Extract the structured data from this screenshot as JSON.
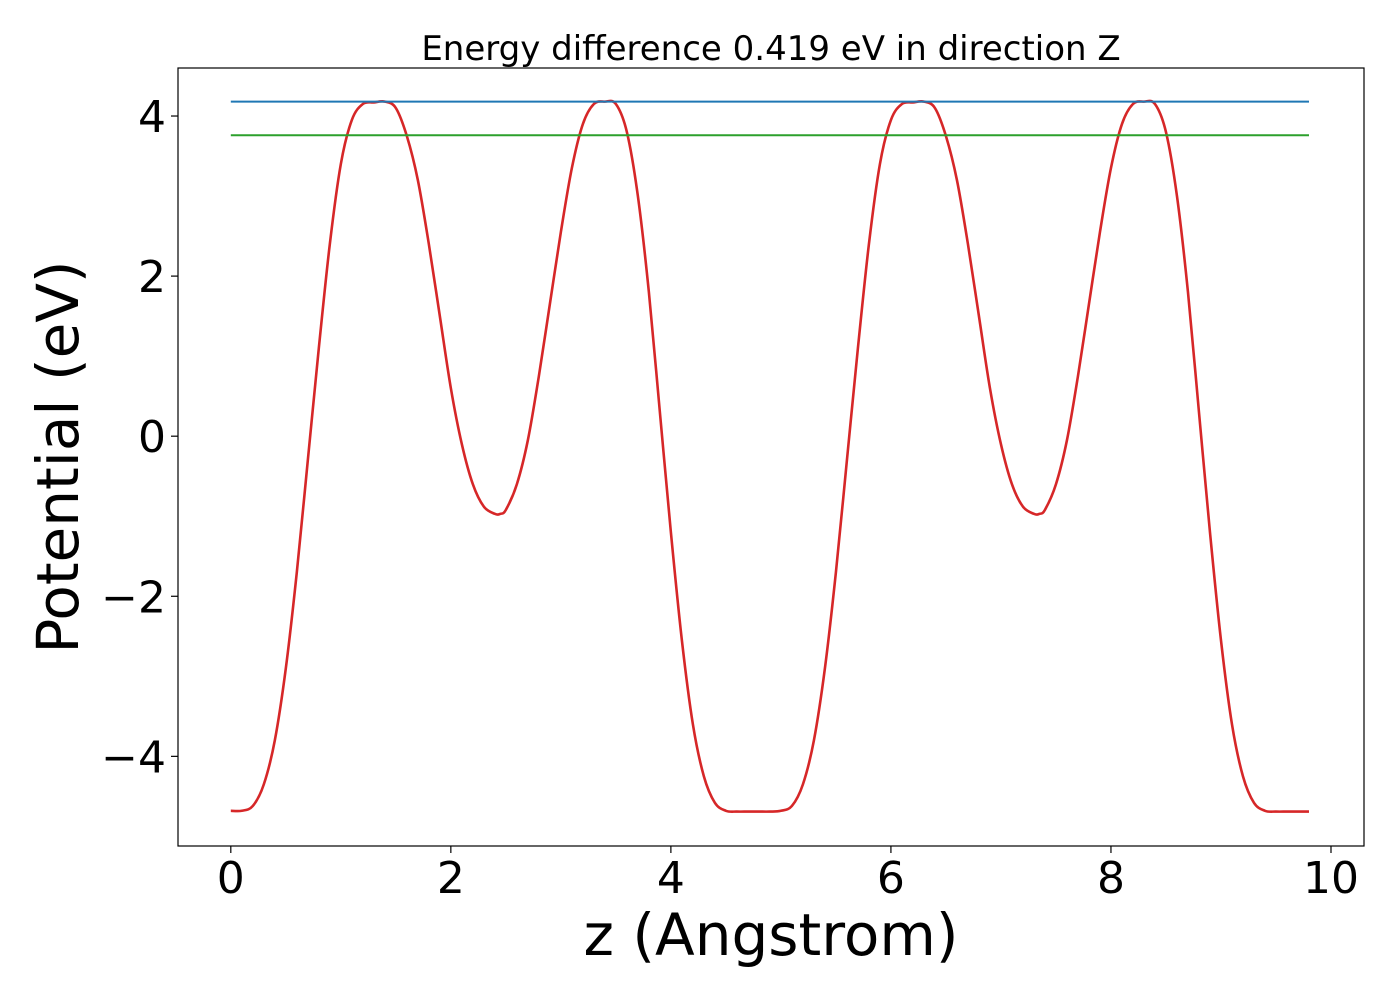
{
  "chart_data": {
    "type": "line",
    "title": "Energy difference 0.419 eV in direction Z",
    "xlabel": "z (Angstrom)",
    "ylabel": "Potential (eV)",
    "xlim": [
      -0.48,
      10.3
    ],
    "ylim": [
      -5.12,
      4.6
    ],
    "xticks": [
      0,
      2,
      4,
      6,
      8,
      10
    ],
    "xtick_labels": [
      "0",
      "2",
      "4",
      "6",
      "8",
      "10"
    ],
    "yticks": [
      -4,
      -2,
      0,
      2,
      4
    ],
    "ytick_labels": [
      "−4",
      "−2",
      "0",
      "2",
      "4"
    ],
    "grid": false,
    "series": [
      {
        "color": "#d62728",
        "kind": "curve",
        "x": [
          0.0,
          0.1,
          0.2,
          0.3,
          0.4,
          0.5,
          0.6,
          0.7,
          0.8,
          0.9,
          1.0,
          1.1,
          1.2,
          1.3,
          1.4,
          1.5,
          1.6,
          1.7,
          1.8,
          1.9,
          2.0,
          2.1,
          2.2,
          2.3,
          2.4,
          2.45,
          2.5,
          2.6,
          2.7,
          2.8,
          2.9,
          3.0,
          3.1,
          3.2,
          3.3,
          3.4,
          3.5,
          3.6,
          3.7,
          3.8,
          3.9,
          4.0,
          4.1,
          4.2,
          4.3,
          4.4,
          4.5,
          4.6,
          4.7,
          4.8,
          4.9,
          5.0,
          5.1,
          5.2,
          5.3,
          5.4,
          5.5,
          5.6,
          5.7,
          5.8,
          5.9,
          6.0,
          6.1,
          6.2,
          6.3,
          6.4,
          6.5,
          6.6,
          6.7,
          6.8,
          6.9,
          7.0,
          7.1,
          7.2,
          7.3,
          7.35,
          7.4,
          7.5,
          7.6,
          7.7,
          7.8,
          7.9,
          8.0,
          8.1,
          8.2,
          8.3,
          8.4,
          8.5,
          8.6,
          8.7,
          8.8,
          8.9,
          9.0,
          9.1,
          9.2,
          9.3,
          9.4,
          9.5,
          9.6,
          9.7,
          9.8
        ],
        "y": [
          -4.68,
          -4.68,
          -4.62,
          -4.35,
          -3.8,
          -2.9,
          -1.7,
          -0.3,
          1.1,
          2.4,
          3.4,
          3.95,
          4.15,
          4.17,
          4.18,
          4.1,
          3.75,
          3.2,
          2.4,
          1.5,
          0.6,
          -0.1,
          -0.6,
          -0.88,
          -0.97,
          -0.97,
          -0.92,
          -0.6,
          -0.05,
          0.75,
          1.65,
          2.55,
          3.35,
          3.9,
          4.15,
          4.18,
          4.15,
          3.8,
          3.0,
          1.8,
          0.3,
          -1.2,
          -2.55,
          -3.6,
          -4.25,
          -4.58,
          -4.68,
          -4.69,
          -4.69,
          -4.69,
          -4.69,
          -4.68,
          -4.62,
          -4.35,
          -3.8,
          -2.9,
          -1.7,
          -0.3,
          1.1,
          2.4,
          3.4,
          3.95,
          4.15,
          4.17,
          4.18,
          4.1,
          3.75,
          3.2,
          2.4,
          1.5,
          0.6,
          -0.1,
          -0.6,
          -0.88,
          -0.97,
          -0.97,
          -0.92,
          -0.6,
          -0.05,
          0.75,
          1.65,
          2.55,
          3.35,
          3.9,
          4.15,
          4.18,
          4.15,
          3.8,
          3.0,
          1.8,
          0.3,
          -1.2,
          -2.55,
          -3.6,
          -4.25,
          -4.58,
          -4.68,
          -4.69,
          -4.69,
          -4.69,
          -4.69
        ]
      },
      {
        "color": "#1f77b4",
        "kind": "hline",
        "x": [
          0.0,
          9.8
        ],
        "y": [
          4.18,
          4.18
        ]
      },
      {
        "color": "#2ca02c",
        "kind": "hline",
        "x": [
          0.0,
          9.8
        ],
        "y": [
          3.76,
          3.76
        ]
      }
    ]
  }
}
